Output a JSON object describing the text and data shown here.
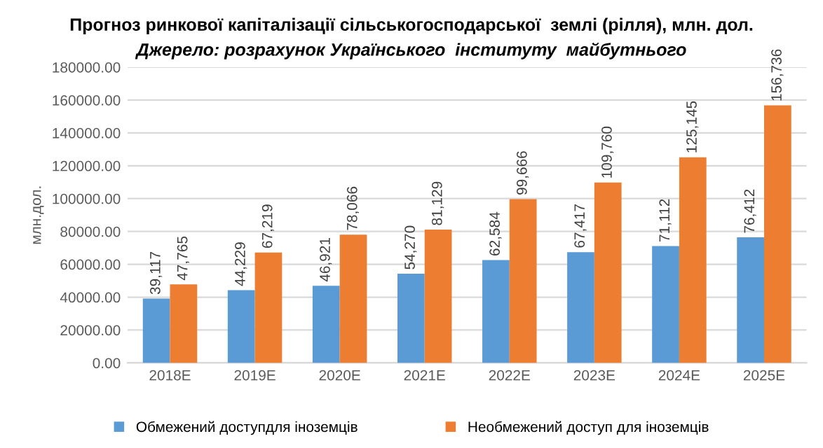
{
  "chart_data": {
    "type": "bar",
    "title": "Прогноз ринкової капіталізації сільськогосподарської  землі (рілля), млн. дол.",
    "subtitle": "Джерело: розрахунок Українського  інституту  майбутнього",
    "ylabel": "млн.дол.",
    "categories": [
      "2018E",
      "2019E",
      "2020E",
      "2021E",
      "2022E",
      "2023E",
      "2024E",
      "2025E"
    ],
    "series": [
      {
        "name": "Обмежений доступдля іноземців",
        "color": "#5b9bd5",
        "values": [
          39117,
          44229,
          46921,
          54270,
          62584,
          67417,
          71112,
          76412
        ],
        "value_labels": [
          "39,117",
          "44,229",
          "46,921",
          "54,270",
          "62,584",
          "67,417",
          "71,112",
          "76,412"
        ]
      },
      {
        "name": "Необмежений доступ для іноземців",
        "color": "#ed7d31",
        "values": [
          47765,
          67219,
          78066,
          81129,
          99666,
          109760,
          125145,
          156736
        ],
        "value_labels": [
          "47,765",
          "67,219",
          "78,066",
          "81,129",
          "99,666",
          "109,760",
          "125,145",
          "156,736"
        ]
      }
    ],
    "ylim": [
      0,
      180000
    ],
    "yticks": [
      {
        "value": 0,
        "label": "0.00"
      },
      {
        "value": 20000,
        "label": "20000.00"
      },
      {
        "value": 40000,
        "label": "40000.00"
      },
      {
        "value": 60000,
        "label": "60000.00"
      },
      {
        "value": 80000,
        "label": "80000.00"
      },
      {
        "value": 100000,
        "label": "100000.00"
      },
      {
        "value": 120000,
        "label": "120000.00"
      },
      {
        "value": 140000,
        "label": "140000.00"
      },
      {
        "value": 160000,
        "label": "160000.00"
      },
      {
        "value": 180000,
        "label": "180000.00"
      }
    ],
    "grid": "y",
    "legend": "bottom"
  }
}
